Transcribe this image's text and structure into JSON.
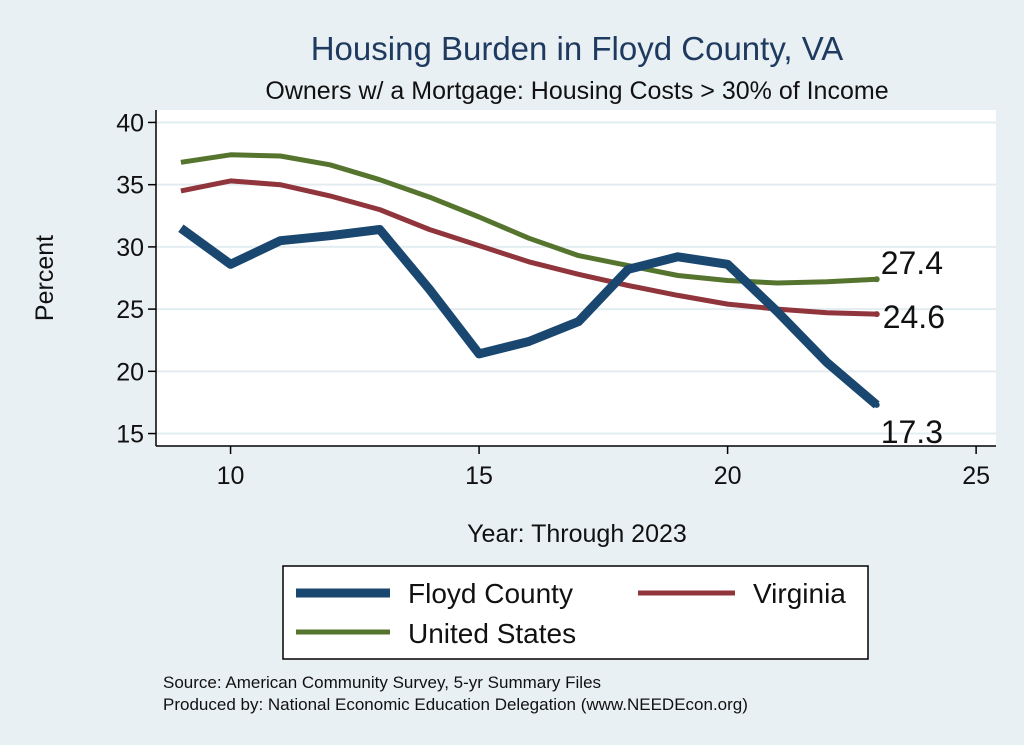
{
  "chart_data": {
    "type": "line",
    "title": "Housing Burden in Floyd County, VA",
    "subtitle": "Owners w/ a Mortgage: Housing Costs > 30% of Income",
    "xlabel": "Year: Through 2023",
    "ylabel": "Percent",
    "xlim": [
      8.5,
      25.4
    ],
    "ylim": [
      14,
      41
    ],
    "xticks": [
      10,
      15,
      20,
      25
    ],
    "yticks": [
      15,
      20,
      25,
      30,
      35,
      40
    ],
    "grid": true,
    "legend_position": "bottom",
    "x": [
      9,
      10,
      11,
      12,
      13,
      14,
      15,
      16,
      17,
      18,
      19,
      20,
      21,
      22,
      23
    ],
    "series": [
      {
        "name": "Floyd County",
        "color": "#1a476f",
        "values": [
          31.5,
          28.6,
          30.5,
          30.9,
          31.4,
          26.6,
          21.4,
          22.4,
          24.0,
          28.2,
          29.2,
          28.6,
          24.8,
          20.7,
          17.3
        ],
        "end_label": "17.3"
      },
      {
        "name": "Virginia",
        "color": "#90353b",
        "values": [
          34.5,
          35.3,
          35.0,
          34.1,
          33.0,
          31.4,
          30.1,
          28.8,
          27.8,
          26.9,
          26.1,
          25.4,
          25.0,
          24.7,
          24.6
        ],
        "end_label": "24.6"
      },
      {
        "name": "United States",
        "color": "#55752f",
        "values": [
          36.8,
          37.4,
          37.3,
          36.6,
          35.4,
          34.0,
          32.4,
          30.7,
          29.3,
          28.5,
          27.7,
          27.3,
          27.1,
          27.2,
          27.4
        ],
        "end_label": "27.4"
      }
    ]
  },
  "notes": {
    "source": "Source: American Community Survey, 5-yr Summary Files",
    "produced": "Produced by: National Economic Education Delegation (www.NEEDEcon.org)"
  }
}
